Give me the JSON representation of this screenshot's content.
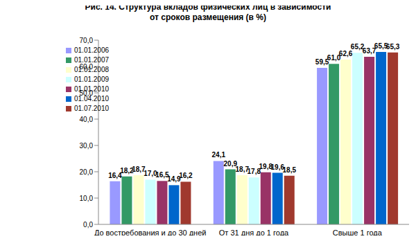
{
  "chart_data": {
    "type": "bar",
    "title": "Рис. 14. Структура вкладов физических лиц в зависимости от сроков размещения (в %)",
    "categories": [
      "До востребования и до 30 дней",
      "От 31 дня до 1 года",
      "Свыше 1 года"
    ],
    "series": [
      {
        "name": "01.01.2006",
        "color": "#9999FF",
        "values": [
          16.4,
          24.1,
          59.5
        ],
        "value_labels": [
          "16,4",
          "24,1",
          "59,5"
        ]
      },
      {
        "name": "01.01.2007",
        "color": "#339966",
        "values": [
          18.2,
          20.9,
          61.0
        ],
        "value_labels": [
          "18,2",
          "20,9",
          "61,0"
        ]
      },
      {
        "name": "01.01.2008",
        "color": "#FFFFCC",
        "values": [
          18.7,
          18.7,
          62.6
        ],
        "value_labels": [
          "18,7",
          "18,7",
          "62,6"
        ]
      },
      {
        "name": "01.01.2009",
        "color": "#CCFFFF",
        "values": [
          17.0,
          17.8,
          65.2
        ],
        "value_labels": [
          "17,0",
          "17,8",
          "65,2"
        ]
      },
      {
        "name": "01.01.2010",
        "color": "#993366",
        "values": [
          16.5,
          19.8,
          63.7
        ],
        "value_labels": [
          "16,5",
          "19,8",
          "63,7"
        ]
      },
      {
        "name": "01.04.2010",
        "color": "#0066CC",
        "values": [
          14.9,
          19.6,
          65.5
        ],
        "value_labels": [
          "14,9",
          "19,6",
          "65,5"
        ]
      },
      {
        "name": "01.07.2010",
        "color": "#A0392E",
        "values": [
          16.2,
          18.5,
          65.3
        ],
        "value_labels": [
          "16,2",
          "18,5",
          "65,3"
        ]
      }
    ],
    "ylim": [
      0,
      70
    ],
    "yticks": [
      {
        "value": 0,
        "label": "0,0"
      },
      {
        "value": 10,
        "label": "10,0"
      },
      {
        "value": 20,
        "label": "20,0"
      },
      {
        "value": 30,
        "label": "30,0"
      },
      {
        "value": 40,
        "label": "40,0"
      },
      {
        "value": 50,
        "label": "50,0"
      },
      {
        "value": 60,
        "label": "60,0"
      },
      {
        "value": 70,
        "label": "70,0"
      }
    ],
    "grid": false,
    "legend": "upper left",
    "data_labels": true
  }
}
